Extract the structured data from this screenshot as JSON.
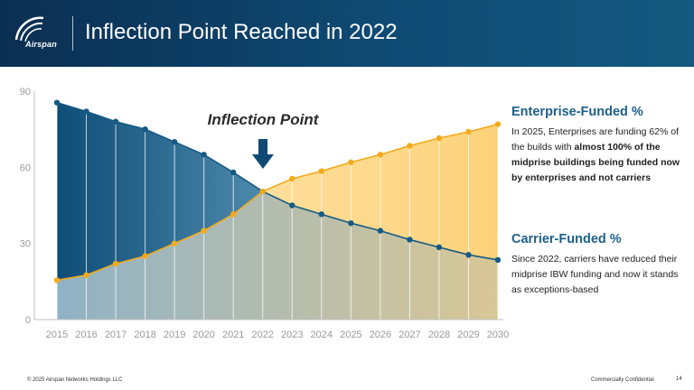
{
  "header": {
    "title": "Inflection Point Reached in 2022",
    "logo_text": "Airspan"
  },
  "colors": {
    "header_dark": "#0b2f52",
    "carrier": "#155a85",
    "enterprise": "#f3ab1c",
    "heading": "#1d5f8a"
  },
  "chart_data": {
    "type": "area",
    "x": [
      2015,
      2016,
      2017,
      2018,
      2019,
      2020,
      2021,
      2022,
      2023,
      2024,
      2025,
      2026,
      2027,
      2028,
      2029,
      2030
    ],
    "series": [
      {
        "name": "Carrier-Funded %",
        "values": [
          85.5,
          82,
          78,
          75,
          70,
          65,
          58,
          50.5,
          45,
          41.5,
          38,
          35,
          31.5,
          28.5,
          25.5,
          23.5
        ]
      },
      {
        "name": "Enterprise-Funded %",
        "values": [
          15.5,
          17.5,
          22,
          25,
          30,
          35,
          41.5,
          50.5,
          55.5,
          58.5,
          62,
          65,
          68.5,
          71.5,
          74,
          77
        ]
      }
    ],
    "yticks": [
      "0",
      "30",
      "60",
      "90"
    ],
    "ylim": [
      0,
      90
    ],
    "grid": false,
    "annotation": "Inflection Point"
  },
  "side": {
    "enterprise": {
      "title": "Enterprise-Funded %",
      "text_pre": "In 2025, Enterprises are funding 62% of the builds with ",
      "text_bold": "almost 100% of the midprise buildings being funded now by enterprises and not carriers"
    },
    "carrier": {
      "title": "Carrier-Funded %",
      "text": "Since 2022, carriers have reduced their midprise IBW funding and now it stands as exceptions-based"
    }
  },
  "footer": {
    "copyright": "© 2025 Airspan Networks Holdings LLC",
    "confidential": "Commercially Confidential",
    "page": "14"
  }
}
